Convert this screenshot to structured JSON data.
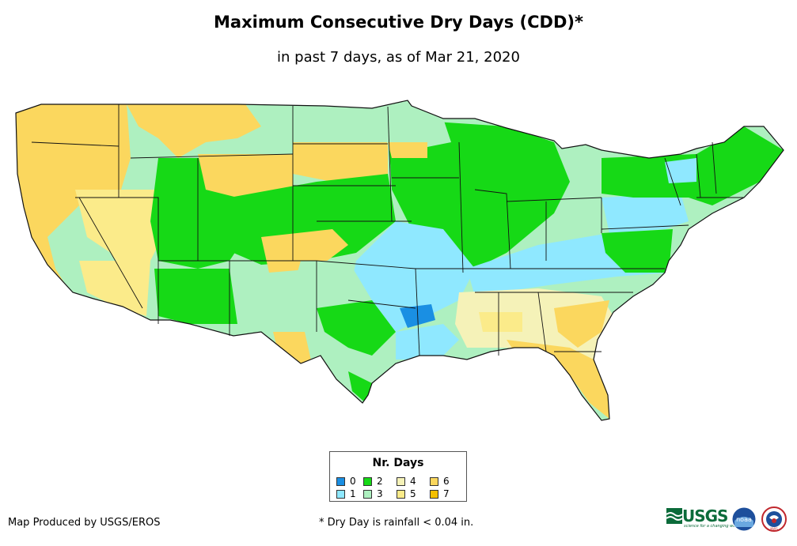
{
  "title": "Maximum Consecutive Dry Days (CDD)*",
  "subtitle": "in past 7 days, as of Mar 21, 2020",
  "legend": {
    "title": "Nr. Days",
    "items": [
      {
        "label": "0",
        "color": "#1a8fe3"
      },
      {
        "label": "1",
        "color": "#8fe8ff"
      },
      {
        "label": "2",
        "color": "#16d916"
      },
      {
        "label": "3",
        "color": "#aef0c0"
      },
      {
        "label": "4",
        "color": "#f5f2b8"
      },
      {
        "label": "5",
        "color": "#fbeb8a"
      },
      {
        "label": "6",
        "color": "#fbd75e"
      },
      {
        "label": "7",
        "color": "#f5c000"
      }
    ]
  },
  "footer": {
    "producer": "Map Produced by USGS/EROS",
    "footnote": "* Dry Day is rainfall < 0.04 in."
  },
  "logos": {
    "usgs": "USGS",
    "usgs_tagline": "science for a changing world",
    "noaa": "noaa",
    "nws": "NWS"
  },
  "colors": {
    "state_border": "#111111",
    "background": "#ffffff"
  }
}
